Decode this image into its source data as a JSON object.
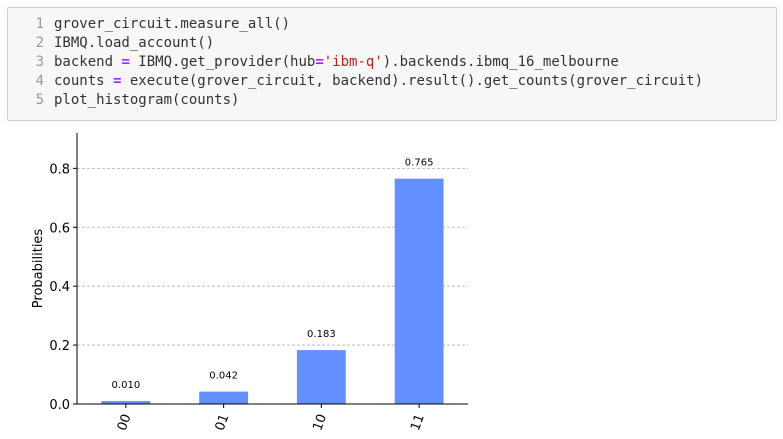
{
  "code_cell": {
    "line_numbers": [
      "1",
      "2",
      "3",
      "4",
      "5"
    ],
    "lines": [
      {
        "segments": [
          {
            "t": "grover_circuit.measure_all()",
            "k": "plain"
          }
        ]
      },
      {
        "segments": [
          {
            "t": "IBMQ.load_account()",
            "k": "plain"
          }
        ]
      },
      {
        "segments": [
          {
            "t": "backend ",
            "k": "plain"
          },
          {
            "t": "=",
            "k": "op"
          },
          {
            "t": " IBMQ.get_provider(hub",
            "k": "plain"
          },
          {
            "t": "=",
            "k": "op"
          },
          {
            "t": "'ibm-q'",
            "k": "str"
          },
          {
            "t": ").backends.ibmq_16_melbourne",
            "k": "plain"
          }
        ]
      },
      {
        "segments": [
          {
            "t": "counts ",
            "k": "plain"
          },
          {
            "t": "=",
            "k": "op"
          },
          {
            "t": " execute(grover_circuit, backend).result().get_counts(grover_circuit)",
            "k": "plain"
          }
        ]
      },
      {
        "segments": [
          {
            "t": "plot_histogram(counts)",
            "k": "plain"
          }
        ]
      }
    ]
  },
  "chart_data": {
    "type": "bar",
    "categories": [
      "00",
      "01",
      "10",
      "11"
    ],
    "values": [
      0.01,
      0.042,
      0.183,
      0.765
    ],
    "value_labels": [
      "0.010",
      "0.042",
      "0.183",
      "0.765"
    ],
    "ylabel": "Probabilities",
    "ylim": [
      0,
      0.92
    ],
    "yticks": [
      0.0,
      0.2,
      0.4,
      0.6,
      0.8
    ],
    "ytick_labels": [
      "0.0",
      "0.2",
      "0.4",
      "0.6",
      "0.8"
    ],
    "grid": "horizontal-dashed",
    "bar_color": "#648fff"
  }
}
